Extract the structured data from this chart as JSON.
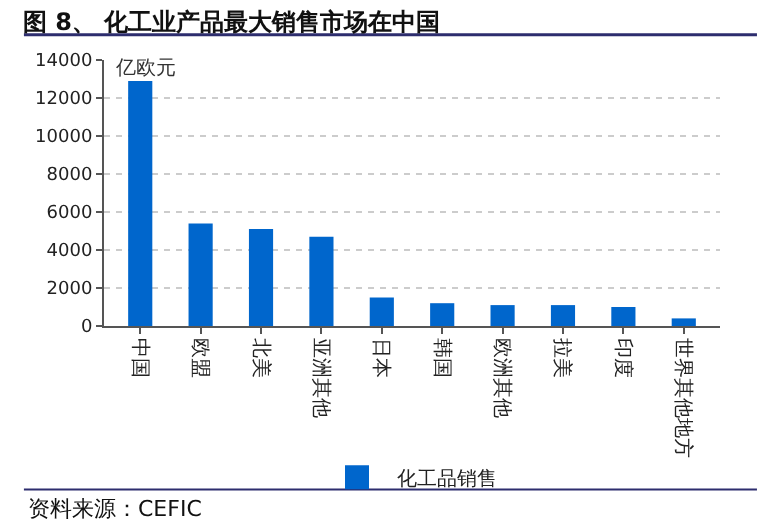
{
  "chart_data": {
    "type": "bar",
    "title": "图 8、 化工业产品最大销售市场在中国",
    "ylabel": "亿欧元",
    "categories": [
      "中国",
      "欧盟",
      "北美",
      "亚洲其他",
      "日本",
      "韩国",
      "欧洲其他",
      "拉美",
      "印度",
      "世界其他地方"
    ],
    "series": [
      {
        "name": "化工品销售",
        "color": "#0066cc",
        "values": [
          12900,
          5400,
          5100,
          4700,
          1500,
          1200,
          1100,
          1100,
          1000,
          400
        ]
      }
    ],
    "ylim": [
      0,
      14000
    ],
    "yticks": [
      0,
      2000,
      4000,
      6000,
      8000,
      10000,
      12000,
      14000
    ],
    "grid": "y",
    "legend": "bottom",
    "annotations": [
      "资料来源：CEFIC"
    ]
  }
}
